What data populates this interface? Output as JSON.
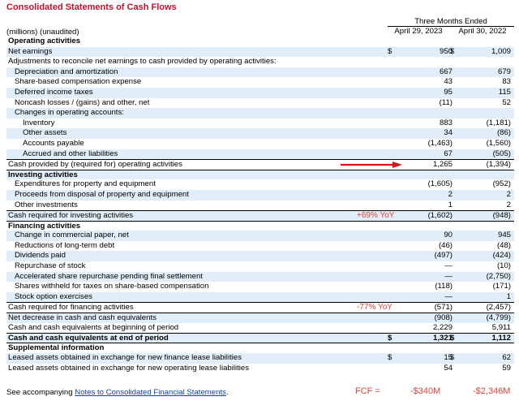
{
  "title": "Consolidated Statements of Cash Flows",
  "header": {
    "period_group": "Three Months Ended",
    "col1": "April 29, 2023",
    "col2": "April 30, 2022",
    "units": "(millions) (unaudited)"
  },
  "rows": [
    {
      "label": "Operating activities",
      "type": "section",
      "indent": 0
    },
    {
      "label": "Net earnings",
      "indent": 0,
      "dol1": "$",
      "v1": "950",
      "dol2": "$",
      "v2": "1,009"
    },
    {
      "label": "Adjustments to reconcile net earnings to cash provided by operating activities:",
      "indent": 0
    },
    {
      "label": "Depreciation and amortization",
      "indent": 1,
      "v1": "667",
      "v2": "679"
    },
    {
      "label": "Share-based compensation expense",
      "indent": 1,
      "v1": "43",
      "v2": "83"
    },
    {
      "label": "Deferred income taxes",
      "indent": 1,
      "v1": "95",
      "v2": "115"
    },
    {
      "label": "Noncash losses / (gains) and other, net",
      "indent": 1,
      "v1": "(11)",
      "v2": "52"
    },
    {
      "label": "Changes in operating accounts:",
      "indent": 1
    },
    {
      "label": "Inventory",
      "indent": 2,
      "v1": "883",
      "v2": "(1,181)"
    },
    {
      "label": "Other assets",
      "indent": 2,
      "v1": "34",
      "v2": "(86)"
    },
    {
      "label": "Accounts payable",
      "indent": 2,
      "v1": "(1,463)",
      "v2": "(1,560)"
    },
    {
      "label": "Accrued and other liabilities",
      "indent": 2,
      "v1": "67",
      "v2": "(505)"
    },
    {
      "label": "Cash provided by (required for) operating activities",
      "indent": 0,
      "v1": "1,265",
      "v2": "(1,394)",
      "top_line": true,
      "arrow": true
    },
    {
      "label": "Investing activities",
      "type": "section",
      "indent": 0,
      "top_line": true
    },
    {
      "label": "Expenditures for property and equipment",
      "indent": 1,
      "v1": "(1,605)",
      "v2": "(952)"
    },
    {
      "label": "Proceeds from disposal of property and equipment",
      "indent": 1,
      "v1": "2",
      "v2": "2"
    },
    {
      "label": "Other investments",
      "indent": 1,
      "v1": "1",
      "v2": "2"
    },
    {
      "label": "Cash required for investing activities",
      "indent": 0,
      "v1": "(1,602)",
      "v2": "(948)",
      "top_line": true,
      "ann": "+69% YoY"
    },
    {
      "label": "Financing activities",
      "type": "section",
      "indent": 0,
      "top_line": true
    },
    {
      "label": "Change in commercial paper, net",
      "indent": 1,
      "v1": "90",
      "v2": "945"
    },
    {
      "label": "Reductions of long-term debt",
      "indent": 1,
      "v1": "(46)",
      "v2": "(48)"
    },
    {
      "label": "Dividends paid",
      "indent": 1,
      "v1": "(497)",
      "v2": "(424)"
    },
    {
      "label": "Repurchase of stock",
      "indent": 1,
      "v1": "—",
      "v2": "(10)"
    },
    {
      "label": "Accelerated share repurchase pending final settlement",
      "indent": 1,
      "v1": "—",
      "v2": "(2,750)"
    },
    {
      "label": "Shares withheld for taxes on share-based compensation",
      "indent": 1,
      "v1": "(118)",
      "v2": "(171)"
    },
    {
      "label": "Stock option exercises",
      "indent": 1,
      "v1": "—",
      "v2": "1"
    },
    {
      "label": "Cash required for financing activities",
      "indent": 0,
      "v1": "(571)",
      "v2": "(2,457)",
      "top_line": true,
      "ann": "-77% YoY"
    },
    {
      "label": "Net decrease in cash and cash equivalents",
      "indent": 0,
      "v1": "(908)",
      "v2": "(4,799)",
      "top_line": true
    },
    {
      "label": "Cash and cash equivalents at beginning of period",
      "indent": 0,
      "v1": "2,229",
      "v2": "5,911"
    },
    {
      "label": "Cash and cash equivalents at end of period",
      "type": "bold",
      "indent": 0,
      "dol1": "$",
      "v1": "1,321",
      "dol2": "$",
      "v2": "1,112",
      "top_line": true,
      "bot_line": true
    },
    {
      "label": "Supplemental information",
      "type": "section",
      "indent": 0
    },
    {
      "label": "Leased assets obtained in exchange for new finance lease liabilities",
      "indent": 0,
      "dol1": "$",
      "v1": "15",
      "dol2": "$",
      "v2": "62"
    },
    {
      "label": "Leased assets obtained in exchange for new operating lease liabilities",
      "indent": 0,
      "v1": "54",
      "v2": "59"
    }
  ],
  "footer": {
    "prefix": "See accompanying ",
    "link": "Notes to Consolidated Financial Statements",
    "suffix": "."
  },
  "fcf": {
    "label": "FCF =",
    "v1": "-$340M",
    "v2": "-$2,346M"
  },
  "colors": {
    "title": "#c0112b",
    "annotation": "#e0433c",
    "shade": "#e1eef9",
    "link": "#0645ad"
  }
}
